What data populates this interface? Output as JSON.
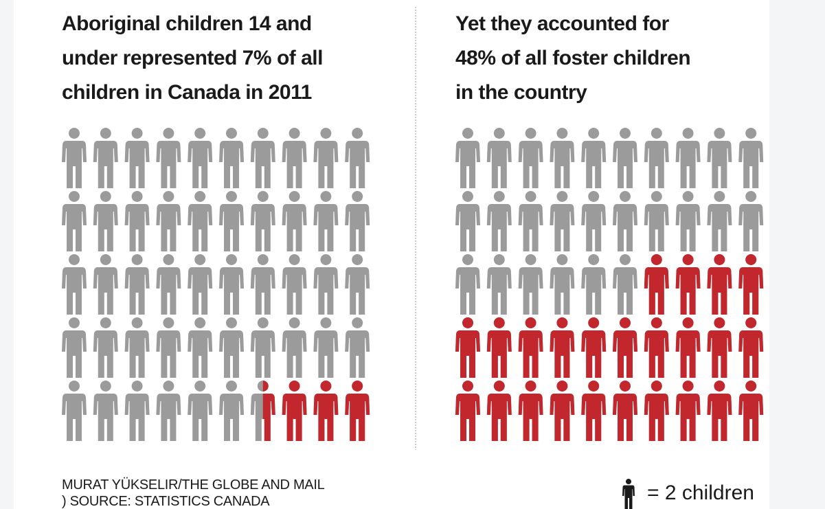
{
  "chart_data": [
    {
      "type": "pictogram",
      "title": [
        "Aboriginal children 14 and",
        "under represented 7% of all",
        "children in Canada in 2011"
      ],
      "value": 7,
      "color": "#c1272d",
      "base_color": "#9b9b9b"
    },
    {
      "type": "pictogram",
      "title": [
        "Yet they accounted for",
        "48% of all foster children",
        "in the country"
      ],
      "value": 48,
      "color": "#c1272d",
      "base_color": "#9b9b9b"
    }
  ],
  "legend": {
    "label": "= 2 children",
    "value": 2
  },
  "credits": [
    "MURAT YÜKSELIR/THE GLOBE AND MAIL",
    ") SOURCE: STATISTICS CANADA"
  ]
}
